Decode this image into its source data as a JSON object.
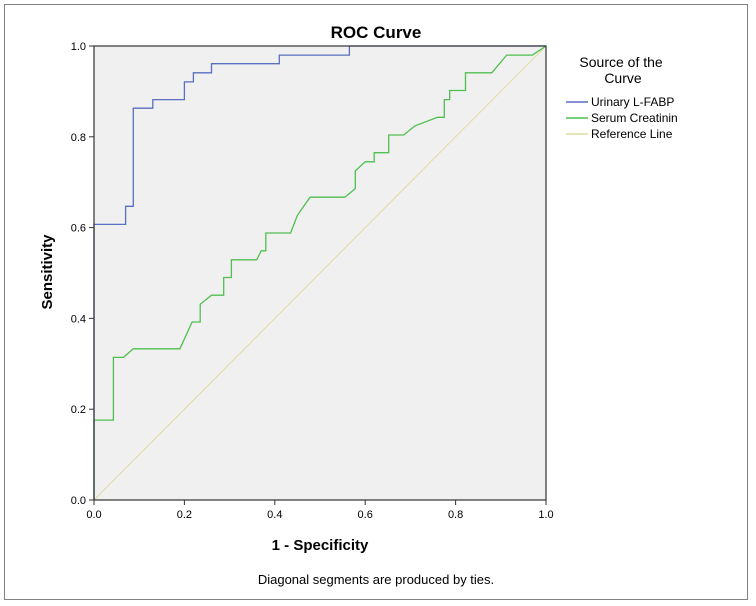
{
  "chart_data": {
    "type": "line",
    "title": "ROC Curve",
    "xlabel": "1 - Specificity",
    "ylabel": "Sensitivity",
    "xlim": [
      0,
      1
    ],
    "ylim": [
      0,
      1
    ],
    "xticks": [
      "0.0",
      "0.2",
      "0.4",
      "0.6",
      "0.8",
      "1.0"
    ],
    "yticks": [
      "0.0",
      "0.2",
      "0.4",
      "0.6",
      "0.8",
      "1.0"
    ],
    "grid": false,
    "legend_title": "Source of the Curve",
    "legend_position": "right",
    "footnote": "Diagonal segments are produced by ties.",
    "colors": {
      "plot_background": "#f0f0f0",
      "urinary": "#5a6fc0",
      "serum": "#4fc04f",
      "reference": "#e0dca0"
    },
    "series": [
      {
        "name": "Urinary L-FABP",
        "color": "#5a6fc0",
        "x": [
          0,
          0,
          0.07,
          0.07,
          0.087,
          0.087,
          0.13,
          0.13,
          0.2,
          0.2,
          0.22,
          0.22,
          0.26,
          0.26,
          0.41,
          0.41,
          0.565,
          0.565,
          0.94,
          0.99,
          1.0
        ],
        "y": [
          0,
          0.607,
          0.607,
          0.647,
          0.647,
          0.863,
          0.863,
          0.882,
          0.882,
          0.921,
          0.921,
          0.941,
          0.941,
          0.961,
          0.961,
          0.98,
          0.98,
          1.0,
          1.0,
          1.0,
          1.0
        ]
      },
      {
        "name": "Serum Creatinin",
        "color": "#4fc04f",
        "x": [
          0,
          0,
          0.043,
          0.043,
          0.065,
          0.087,
          0.19,
          0.217,
          0.235,
          0.235,
          0.26,
          0.287,
          0.287,
          0.304,
          0.304,
          0.36,
          0.37,
          0.38,
          0.38,
          0.435,
          0.45,
          0.478,
          0.555,
          0.578,
          0.578,
          0.6,
          0.62,
          0.62,
          0.65,
          0.652,
          0.652,
          0.675,
          0.685,
          0.71,
          0.76,
          0.775,
          0.775,
          0.787,
          0.787,
          0.8,
          0.822,
          0.822,
          0.88,
          0.913,
          0.97,
          1.0
        ],
        "y": [
          0,
          0.176,
          0.176,
          0.314,
          0.314,
          0.333,
          0.333,
          0.392,
          0.392,
          0.431,
          0.451,
          0.451,
          0.49,
          0.49,
          0.529,
          0.529,
          0.549,
          0.549,
          0.588,
          0.588,
          0.627,
          0.667,
          0.667,
          0.686,
          0.725,
          0.745,
          0.745,
          0.765,
          0.765,
          0.765,
          0.804,
          0.804,
          0.804,
          0.824,
          0.843,
          0.843,
          0.882,
          0.882,
          0.902,
          0.902,
          0.902,
          0.941,
          0.941,
          0.98,
          0.98,
          1.0
        ]
      },
      {
        "name": "Reference Line",
        "color": "#e0dca0",
        "x": [
          0,
          1
        ],
        "y": [
          0,
          1
        ]
      }
    ]
  }
}
